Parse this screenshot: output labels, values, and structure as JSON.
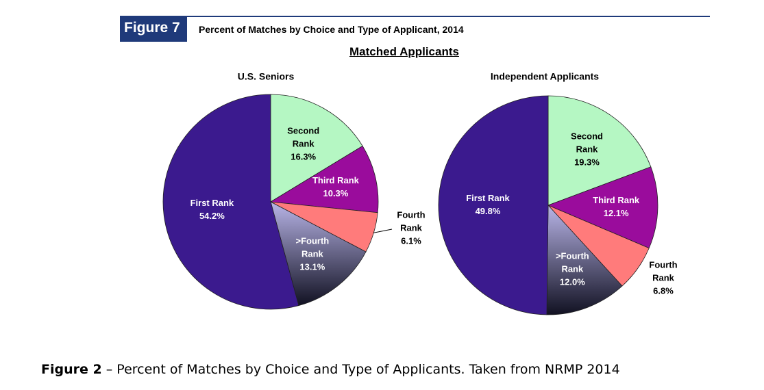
{
  "figure_label": "Figure 7",
  "figure_title": "Percent of Matches by Choice and Type of Applicant, 2014",
  "section_title": "Matched Applicants",
  "caption": {
    "label": "Figure 2",
    "text": "– Percent of Matches by Choice and Type of Applicants. Taken from NRMP 2014"
  },
  "chart_data": [
    {
      "type": "pie",
      "title": "U.S. Seniors",
      "categories": [
        "First Rank",
        "Second Rank",
        "Third Rank",
        "Fourth Rank",
        ">Fourth Rank"
      ],
      "values": [
        54.2,
        16.3,
        10.3,
        6.1,
        13.1
      ],
      "value_labels": [
        "54.2%",
        "16.3%",
        "10.3%",
        "6.1%",
        "13.1%"
      ],
      "colors": [
        "#3b1a8e",
        "#b5f7c3",
        "#9a0c9c",
        "#ff7b7b",
        "#b9b5e8"
      ]
    },
    {
      "type": "pie",
      "title": "Independent Applicants",
      "categories": [
        "First Rank",
        "Second Rank",
        "Third Rank",
        "Fourth Rank",
        ">Fourth Rank"
      ],
      "values": [
        49.8,
        19.3,
        12.1,
        6.8,
        12.0
      ],
      "value_labels": [
        "49.8%",
        "19.3%",
        "12.1%",
        "6.8%",
        "12.0%"
      ],
      "colors": [
        "#3b1a8e",
        "#b5f7c3",
        "#9a0c9c",
        "#ff7b7b",
        "#b9b5e8"
      ]
    }
  ]
}
